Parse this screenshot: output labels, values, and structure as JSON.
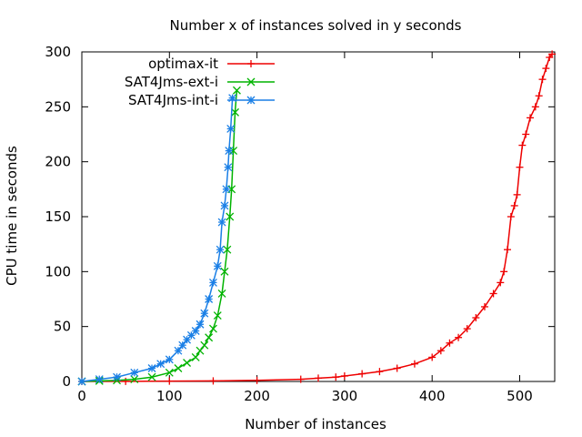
{
  "chart_data": {
    "type": "line",
    "title": "Number x of instances solved in y seconds",
    "xlabel": "Number of instances",
    "ylabel": "CPU time in seconds",
    "xlim": [
      0,
      540
    ],
    "ylim": [
      0,
      300
    ],
    "xticks": [
      "0",
      "100",
      "200",
      "300",
      "400",
      "500"
    ],
    "yticks": [
      "0",
      "50",
      "100",
      "150",
      "200",
      "250",
      "300"
    ],
    "legend_position": "top-left",
    "grid": false,
    "series": [
      {
        "name": "optimax-it",
        "color": "#ee0000",
        "marker": "plus",
        "x": [
          0,
          50,
          100,
          150,
          200,
          250,
          270,
          290,
          300,
          320,
          340,
          360,
          380,
          400,
          410,
          420,
          430,
          440,
          450,
          460,
          470,
          478,
          482,
          486,
          490,
          494,
          497,
          500,
          503,
          507,
          512,
          518,
          522,
          526,
          530,
          534,
          537
        ],
        "y": [
          0.0,
          0.1,
          0.3,
          0.5,
          1.0,
          2.0,
          3.0,
          4.0,
          5.0,
          7.0,
          9.0,
          12.0,
          16.0,
          22.0,
          28.0,
          35.0,
          40.0,
          48.0,
          58.0,
          68.0,
          80.0,
          90.0,
          100.0,
          120.0,
          150.0,
          160.0,
          170.0,
          195.0,
          215.0,
          225.0,
          240.0,
          250.0,
          260.0,
          275.0,
          285.0,
          295.0,
          298.0
        ]
      },
      {
        "name": "SAT4Jms-ext-i",
        "color": "#00b300",
        "marker": "cross",
        "x": [
          0,
          20,
          40,
          60,
          80,
          100,
          110,
          120,
          130,
          135,
          140,
          145,
          150,
          155,
          160,
          163,
          166,
          169,
          171,
          173,
          175,
          177
        ],
        "y": [
          0.0,
          0.5,
          1.0,
          2.0,
          4.0,
          8.0,
          12.0,
          17.0,
          22.0,
          28.0,
          33.0,
          40.0,
          48.0,
          60.0,
          80.0,
          100.0,
          120.0,
          150.0,
          175.0,
          210.0,
          245.0,
          265.0
        ]
      },
      {
        "name": "SAT4Jms-int-i",
        "color": "#1a7fe6",
        "marker": "star",
        "x": [
          0,
          20,
          40,
          60,
          80,
          90,
          100,
          110,
          115,
          120,
          125,
          130,
          135,
          140,
          145,
          150,
          155,
          158,
          160,
          163,
          165,
          167,
          168,
          170,
          172
        ],
        "y": [
          0.0,
          2.0,
          4.0,
          8.0,
          12.0,
          16.0,
          20.0,
          28.0,
          33.0,
          38.0,
          42.0,
          46.0,
          52.0,
          62.0,
          75.0,
          90.0,
          105.0,
          120.0,
          145.0,
          160.0,
          175.0,
          195.0,
          210.0,
          230.0,
          258.0
        ]
      }
    ]
  }
}
